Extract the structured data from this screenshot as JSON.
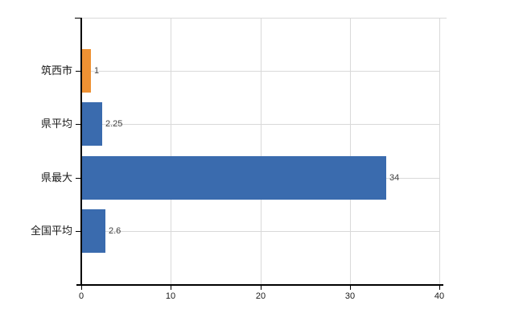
{
  "chart_data": {
    "type": "bar",
    "orientation": "horizontal",
    "title": "",
    "xlabel": "",
    "ylabel": "",
    "categories": [
      "筑西市",
      "県平均",
      "県最大",
      "全国平均"
    ],
    "values": [
      1,
      2.25,
      34,
      2.6
    ],
    "value_labels": [
      "1",
      "2.25",
      "34",
      "2.6"
    ],
    "bar_colors": [
      "#EE9133",
      "#3A6BAE",
      "#3A6BAE",
      "#3A6BAE"
    ],
    "xlim": [
      0,
      40
    ],
    "xticks": [
      0,
      10,
      20,
      30,
      40
    ],
    "xtick_labels": [
      "0",
      "10",
      "20",
      "30",
      "40"
    ],
    "grid": true,
    "legend": false,
    "gridline_color": "#D9D9D9",
    "axis_color": "#000000",
    "value_label_color": "#404040",
    "category_label_color": "#1a1a1a",
    "background_color": "#ffffff"
  }
}
